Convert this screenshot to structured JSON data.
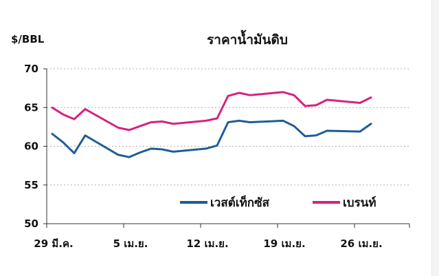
{
  "chart_data": {
    "type": "line",
    "title": "ราคาน้ำมันดิบ",
    "ylabel": "$/BBL",
    "xlabel": "",
    "ylim": [
      50,
      70
    ],
    "y_ticks": [
      "70",
      "65",
      "60",
      "55",
      "50"
    ],
    "x_tick_labels": [
      {
        "label": "29 มี.ค.",
        "x": 1
      },
      {
        "label": "5 เม.ย.",
        "x": 8
      },
      {
        "label": "12 เม.ย.",
        "x": 15
      },
      {
        "label": "19 เม.ย.",
        "x": 22
      },
      {
        "label": "26 เม.ย.",
        "x": 29
      }
    ],
    "xlim": [
      0.5,
      33.5
    ],
    "grid": "horizontal dotted",
    "legend_position": "bottom-center",
    "series": [
      {
        "name": "เวสต์เท็กซัส",
        "color": "#1f5c99",
        "x": [
          1,
          2,
          3,
          4,
          7,
          8,
          9,
          10,
          11,
          12,
          15,
          16,
          17,
          18,
          19,
          22,
          23,
          24,
          25,
          26,
          29,
          30
        ],
        "values": [
          61.6,
          60.5,
          59.1,
          61.4,
          58.9,
          58.6,
          59.2,
          59.7,
          59.6,
          59.3,
          59.7,
          60.1,
          63.1,
          63.3,
          63.1,
          63.3,
          62.6,
          61.3,
          61.4,
          62.0,
          61.9,
          62.9
        ]
      },
      {
        "name": "เบรนท์",
        "color": "#d6237a",
        "x": [
          1,
          2,
          3,
          4,
          7,
          8,
          9,
          10,
          11,
          12,
          15,
          16,
          17,
          18,
          19,
          22,
          23,
          24,
          25,
          26,
          29,
          30
        ],
        "values": [
          65.0,
          64.1,
          63.5,
          64.8,
          62.4,
          62.1,
          62.6,
          63.1,
          63.2,
          62.9,
          63.3,
          63.6,
          66.5,
          66.9,
          66.6,
          67.0,
          66.6,
          65.2,
          65.3,
          66.0,
          65.6,
          66.3
        ]
      }
    ]
  },
  "colors": {
    "background": "#ffffff",
    "gridline": "#b0b0b0",
    "axis": "#333333"
  }
}
